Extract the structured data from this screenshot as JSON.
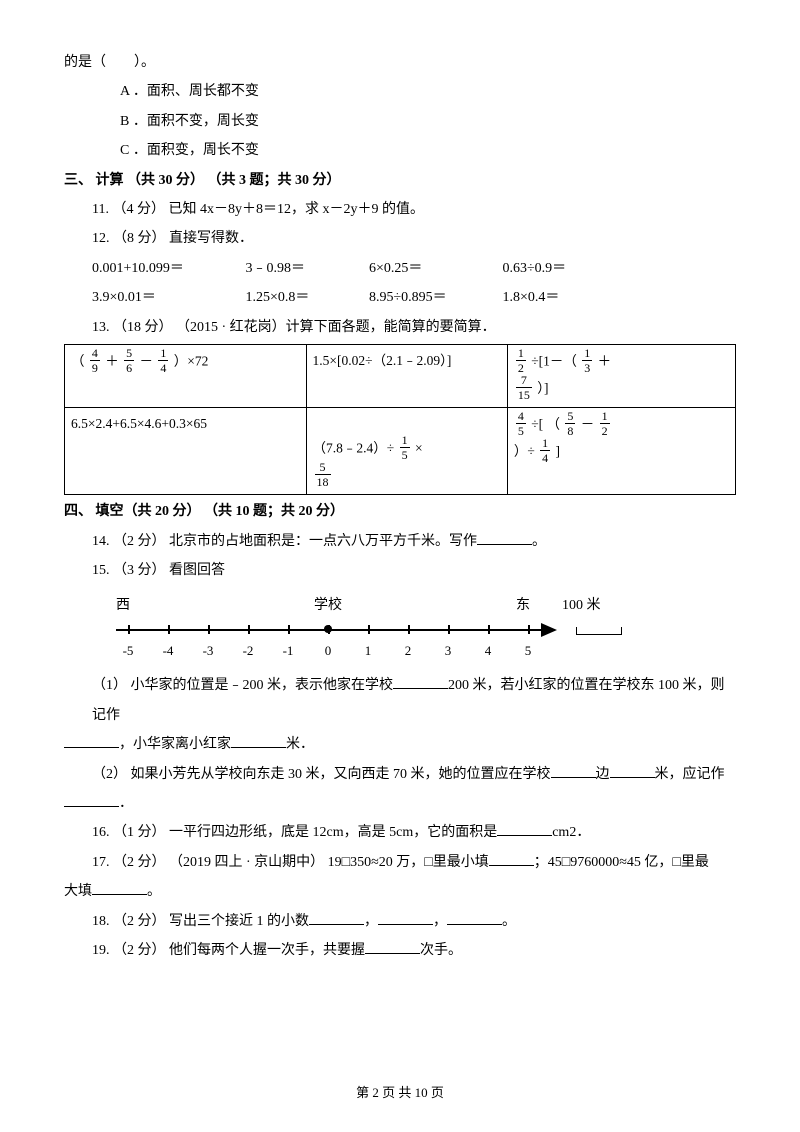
{
  "q10_tail": "的是（　　）。",
  "q10_opts": {
    "a": "A ．面积、周长都不变",
    "b": "B ．面积不变，周长变",
    "c": "C ．面积变，周长不变"
  },
  "section3": "三、 计算 （共 30 分） （共 3 题；共 30 分）",
  "q11": "11.  （4 分）  已知 4x－8y＋8＝12，求 x－2y＋9 的值。",
  "q12": "12.  （8 分）  直接写得数．",
  "q12_row1": {
    "a": "0.001+10.099＝",
    "b": "3﹣0.98＝",
    "c": "6×0.25＝",
    "d": "0.63÷0.9＝"
  },
  "q12_row2": {
    "a": "3.9×0.01＝",
    "b": "1.25×0.8＝",
    "c": "8.95÷0.895＝",
    "d": "1.8×0.4＝"
  },
  "q13": "13.  （18 分）  （2015 · 红花岗）计算下面各题，能简算的要简算．",
  "table": {
    "r1c1": {
      "pre": "（ ",
      "f1n": "4",
      "f1d": "9",
      "mid1": " ＋ ",
      "f2n": "5",
      "f2d": "6",
      "mid2": " － ",
      "f3n": "1",
      "f3d": "4",
      "post": " ）×72"
    },
    "r1c2": "1.5×[0.02÷（2.1﹣2.09）]",
    "r1c3": {
      "f1n": "1",
      "f1d": "2",
      "mid1": " ÷[1－（ ",
      "f2n": "1",
      "f2d": "3",
      "mid2": " ＋",
      "f3n": "7",
      "f3d": "15",
      "post": " ）]"
    },
    "r2c1": "6.5×2.4+6.5×4.6+0.3×65",
    "r2c2": {
      "pre": "（7.8﹣2.4）÷ ",
      "f1n": "1",
      "f1d": "5",
      "mid": " × ",
      "f2n": "5",
      "f2d": "18"
    },
    "r2c3": {
      "f1n": "4",
      "f1d": "5",
      "mid1": " ÷[ （ ",
      "f2n": "5",
      "f2d": "8",
      "mid2": " － ",
      "f3n": "1",
      "f3d": "2",
      "mid3": "）÷ ",
      "f4n": "1",
      "f4d": "4",
      "post": " ]"
    }
  },
  "section4": "四、 填空（共 20 分） （共 10 题；共 20 分）",
  "q14_a": "14.  （2 分）  北京市的占地面积是：一点六八万平方千米。写作",
  "q14_b": "。",
  "q15": "15.  （3 分）  看图回答",
  "diagram": {
    "west": "西",
    "school": "学校",
    "east": "东",
    "m100": "100 米",
    "ticks": [
      "-5",
      "-4",
      "-3",
      "-2",
      "-1",
      "0",
      "1",
      "2",
      "3",
      "4",
      "5"
    ]
  },
  "q15_1a": "（1）  小华家的位置是﹣200 米，表示他家在学校",
  "q15_1b": "200 米，若小红家的位置在学校东 100 米，则记作",
  "q15_1c": "，小华家离小红家",
  "q15_1d": "米．",
  "q15_2a": "（2）  如果小芳先从学校向东走 30 米，又向西走 70 米，她的位置应在学校",
  "q15_2b": "边",
  "q15_2c": "米，应记作",
  "q15_2d": "．",
  "q16_a": "16.  （1 分）  一平行四边形纸，底是 12cm，高是 5cm，它的面积是",
  "q16_b": "cm2．",
  "q17_a": "17.  （2 分）  （2019 四上 · 京山期中）  19□350≈20 万，□里最小填",
  "q17_b": "；45□9760000≈45 亿，□里最",
  "q17_c": "大填",
  "q17_d": "。",
  "q18_a": "18.  （2 分）  写出三个接近 1 的小数",
  "q18_b": "，",
  "q18_c": "，",
  "q18_d": "。",
  "q19_a": "19.  （2 分）  他们每两个人握一次手，共要握",
  "q19_b": "次手。",
  "footer": "第 2 页 共 10 页"
}
